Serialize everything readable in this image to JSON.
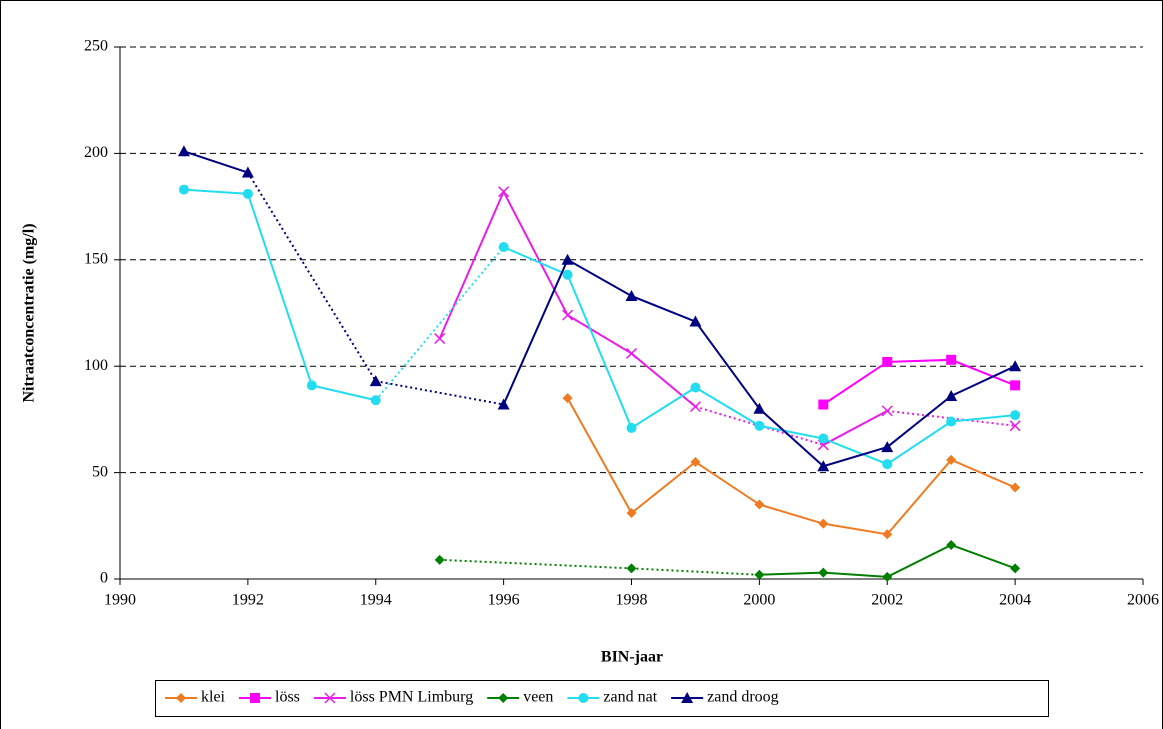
{
  "chart_data": {
    "type": "line",
    "x_label": "BIN-jaar",
    "y_label": "Nitraatconcentratie (mg/l)",
    "x": [
      1991,
      1992,
      1993,
      1994,
      1995,
      1996,
      1997,
      1998,
      1999,
      2000,
      2001,
      2002,
      2003,
      2004
    ],
    "xlim": [
      1990,
      2006
    ],
    "xticks": [
      1990,
      1992,
      1994,
      1996,
      1998,
      2000,
      2002,
      2004,
      2006
    ],
    "ylim": [
      0,
      250
    ],
    "yticks": [
      0,
      50,
      100,
      150,
      200,
      250
    ],
    "grid": true,
    "legend": "bottom",
    "series": [
      {
        "name": "klei",
        "color": "#f07a20",
        "marker": "diamond",
        "values": [
          null,
          null,
          null,
          null,
          null,
          null,
          85,
          31,
          55,
          35,
          26,
          21,
          56,
          43
        ]
      },
      {
        "name": "löss",
        "color": "#ff00ff",
        "marker": "square",
        "values": [
          null,
          null,
          null,
          null,
          null,
          null,
          null,
          null,
          null,
          null,
          82,
          102,
          103,
          91
        ]
      },
      {
        "name": "löss PMN Limburg",
        "color": "#e81ee8",
        "marker": "x",
        "values": [
          null,
          null,
          null,
          null,
          113,
          182,
          124,
          106,
          81,
          null,
          63,
          79,
          null,
          72
        ]
      },
      {
        "name": "veen",
        "color": "#008000",
        "marker": "diamond",
        "values": [
          null,
          null,
          null,
          null,
          9,
          null,
          null,
          5,
          null,
          2,
          3,
          1,
          16,
          5
        ]
      },
      {
        "name": "zand nat",
        "color": "#22ddf0",
        "marker": "circle",
        "values": [
          183,
          181,
          91,
          84,
          null,
          156,
          143,
          71,
          90,
          72,
          66,
          54,
          74,
          77
        ]
      },
      {
        "name": "zand droog",
        "color": "#000080",
        "marker": "triangle",
        "values": [
          201,
          191,
          null,
          93,
          null,
          82,
          150,
          133,
          121,
          80,
          53,
          62,
          86,
          100
        ]
      }
    ]
  }
}
